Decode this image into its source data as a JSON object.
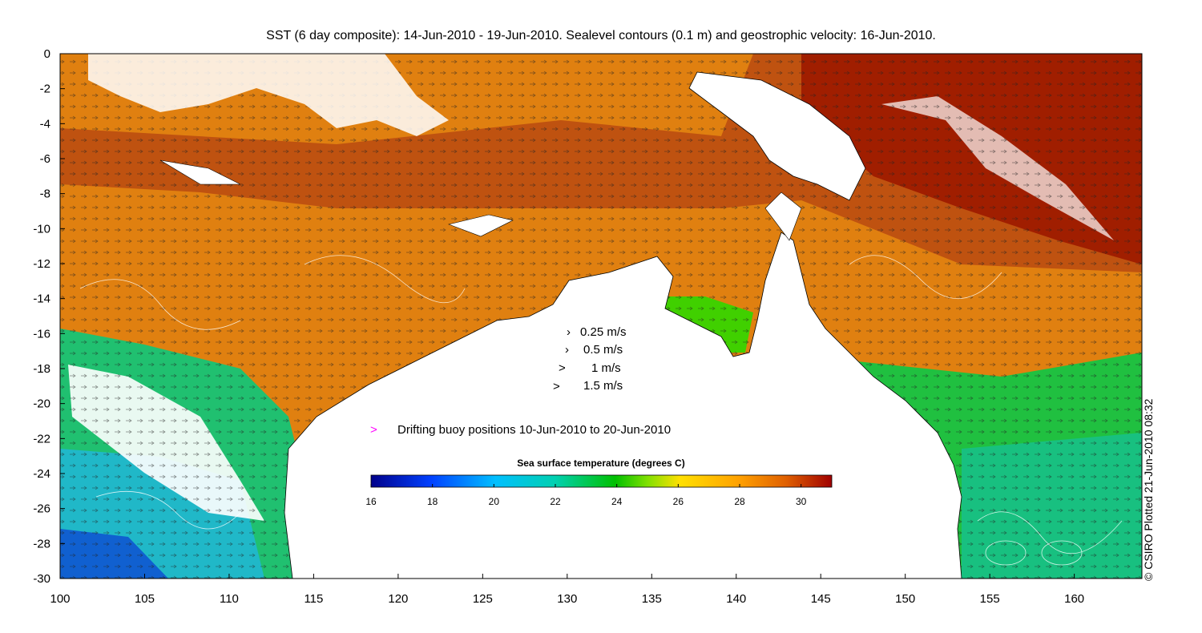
{
  "title": "SST (6 day composite): 14-Jun-2010 - 19-Jun-2010. Sealevel contours (0.1 m) and geostrophic velocity: 16-Jun-2010.",
  "credit": "© CSIRO Plotted 21-Jun-2010 08:32",
  "map": {
    "lon_range": [
      100,
      164
    ],
    "lat_range": [
      -30,
      0
    ],
    "x_ticks": [
      "100",
      "105",
      "110",
      "115",
      "120",
      "125",
      "130",
      "135",
      "140",
      "145",
      "150",
      "155",
      "160"
    ],
    "y_ticks": [
      "0",
      "-2",
      "-4",
      "-6",
      "-8",
      "-10",
      "-12",
      "-14",
      "-16",
      "-18",
      "-20",
      "-22",
      "-24",
      "-26",
      "-28",
      "-30"
    ]
  },
  "velocity_legend": [
    {
      "label": "0.25 m/s",
      "speed": 0.25
    },
    {
      "label": "0.5 m/s",
      "speed": 0.5
    },
    {
      "label": "1 m/s",
      "speed": 1
    },
    {
      "label": "1.5 m/s",
      "speed": 1.5
    }
  ],
  "buoy_legend": {
    "symbol": ">",
    "label": "Drifting buoy positions 10-Jun-2010 to 20-Jun-2010",
    "color": "#ff00ff"
  },
  "colorbar": {
    "title": "Sea surface temperature (degrees C)",
    "min": 16,
    "max": 31,
    "tick_labels": [
      "16",
      "18",
      "20",
      "22",
      "24",
      "26",
      "28",
      "30"
    ],
    "colors": [
      "#00008b",
      "#0040ff",
      "#00bfff",
      "#00d0b0",
      "#00c000",
      "#80e000",
      "#ffe000",
      "#ffa000",
      "#e06000",
      "#a00000"
    ]
  }
}
